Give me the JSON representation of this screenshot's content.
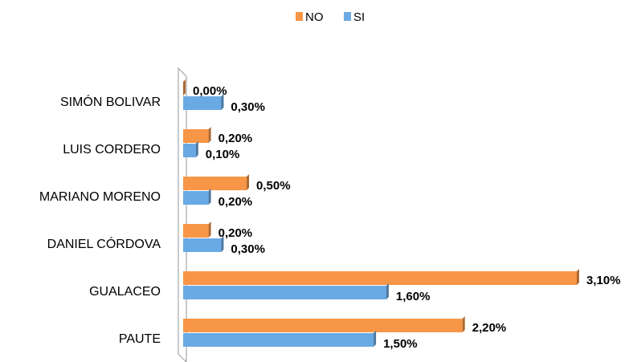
{
  "chart_data": {
    "type": "bar",
    "orientation": "horizontal",
    "categories": [
      "SIMÓN BOLIVAR",
      "LUIS CORDERO",
      "MARIANO MORENO",
      "DANIEL CÓRDOVA",
      "GUALACEO",
      "PAUTE"
    ],
    "series": [
      {
        "name": "NO",
        "color": "#f79646",
        "values": [
          0.0,
          0.2,
          0.5,
          0.2,
          3.1,
          2.2
        ],
        "value_labels": [
          "0,00%",
          "0,20%",
          "0,50%",
          "0,20%",
          "3,10%",
          "2,20%"
        ]
      },
      {
        "name": "SI",
        "color": "#6aaae4",
        "values": [
          0.3,
          0.1,
          0.2,
          0.3,
          1.6,
          1.5
        ],
        "value_labels": [
          "0,30%",
          "0,10%",
          "0,20%",
          "0,30%",
          "1,60%",
          "1,50%"
        ]
      }
    ],
    "legend": "top"
  }
}
